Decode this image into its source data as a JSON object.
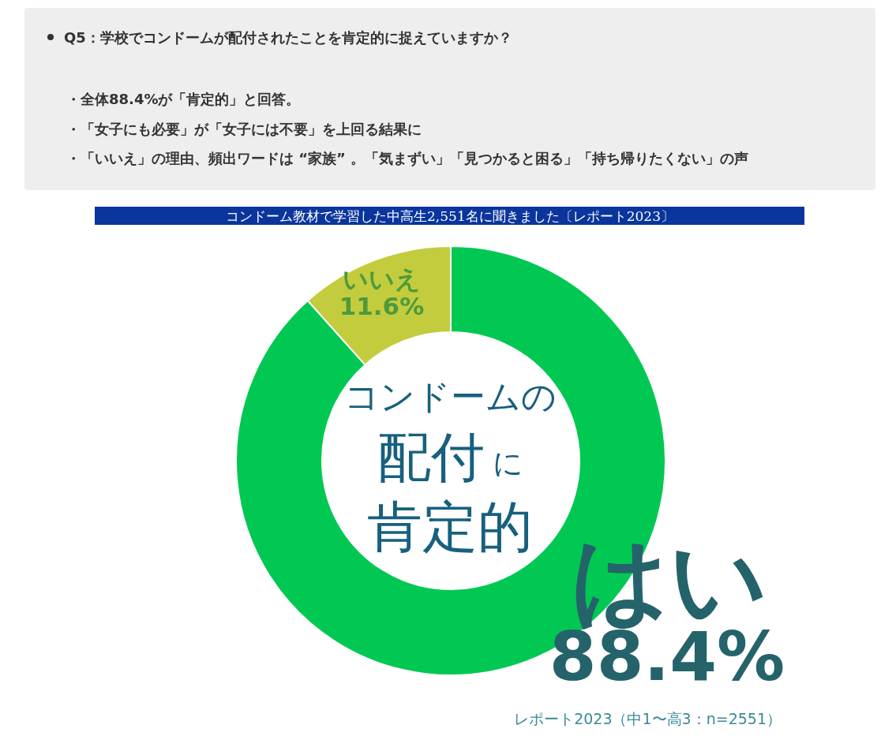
{
  "chart_data": {
    "type": "donut",
    "title": "Q5：学校でコンドームが配付されたことを肯定的に捉えていますか？",
    "subtitle": "コンドーム教材で学習した中高生2,551名に聞きました〔レポート2023〕",
    "categories": [
      "はい",
      "いいえ"
    ],
    "values": [
      88.4,
      11.6
    ],
    "colors": [
      "#00c853",
      "#c3cc3c"
    ],
    "value_labels": [
      "88.4%",
      "11.6%"
    ],
    "annotations": [
      "・全体88.4%が「肯定的」と回答。",
      "・「女子にも必要」が「女子には不要」を上回る結果に",
      "・「いいえ」の理由、頻出ワードは “家族” 。「気まずい」「見つかると困る」「持ち帰りたくない」の声",
      "コンドームの",
      "配付",
      "に",
      "肯定的",
      "レポート2023（中1〜高3：n=2551）"
    ]
  }
}
